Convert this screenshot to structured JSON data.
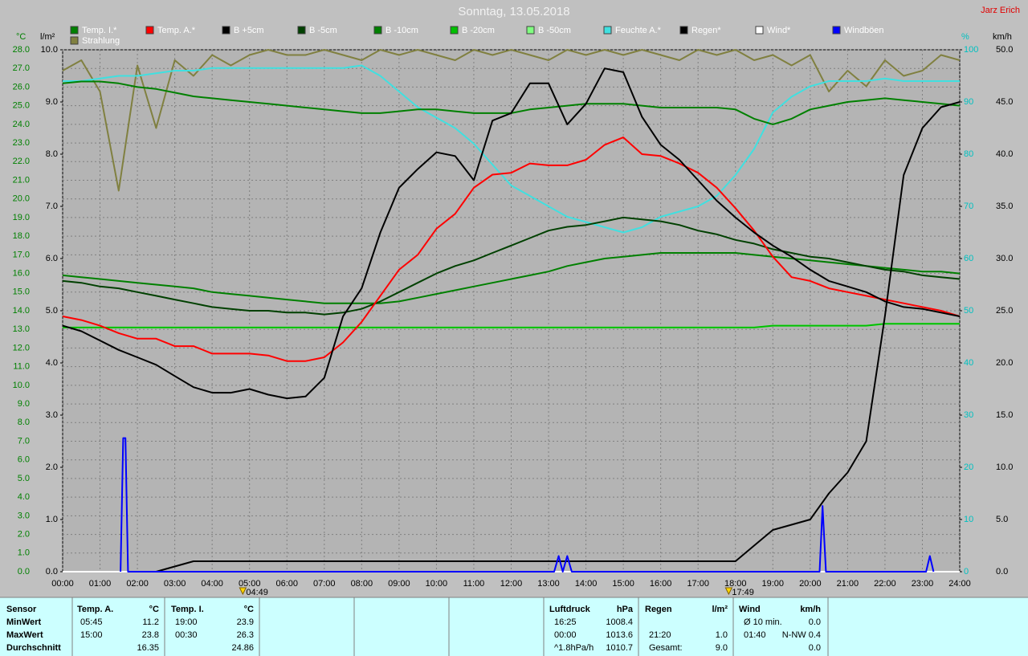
{
  "header": {
    "title": "Sonntag, 13.05.2018",
    "author": "Jarz Erich"
  },
  "chart_data": {
    "type": "line",
    "ylabel": "°C",
    "y2label": "l/m²",
    "y3label": "%",
    "y4label": "km/h",
    "x": [
      0,
      0.5,
      1,
      1.5,
      2,
      2.5,
      3,
      3.5,
      4,
      4.5,
      5,
      5.5,
      6,
      6.5,
      7,
      7.5,
      8,
      8.5,
      9,
      9.5,
      10,
      10.5,
      11,
      11.5,
      12,
      12.5,
      13,
      13.5,
      14,
      14.5,
      15,
      15.5,
      16,
      16.5,
      17,
      17.5,
      18,
      18.5,
      19,
      19.5,
      20,
      20.5,
      21,
      21.5,
      22,
      22.5,
      23,
      23.5,
      24
    ],
    "xlim": [
      0,
      24
    ],
    "xticks": [
      {
        "value": 0,
        "label": "00:00"
      },
      {
        "value": 1,
        "label": "01:00"
      },
      {
        "value": 2,
        "label": "02:00"
      },
      {
        "value": 3,
        "label": "03:00"
      },
      {
        "value": 4,
        "label": "04:00"
      },
      {
        "value": 5,
        "label": "05:00"
      },
      {
        "value": 6,
        "label": "06:00"
      },
      {
        "value": 7,
        "label": "07:00"
      },
      {
        "value": 8,
        "label": "08:00"
      },
      {
        "value": 9,
        "label": "09:00"
      },
      {
        "value": 10,
        "label": "10:00"
      },
      {
        "value": 11,
        "label": "11:00"
      },
      {
        "value": 12,
        "label": "12:00"
      },
      {
        "value": 13,
        "label": "13:00"
      },
      {
        "value": 14,
        "label": "14:00"
      },
      {
        "value": 15,
        "label": "15:00"
      },
      {
        "value": 16,
        "label": "16:00"
      },
      {
        "value": 17,
        "label": "17:00"
      },
      {
        "value": 18,
        "label": "18:00"
      },
      {
        "value": 19,
        "label": "19:00"
      },
      {
        "value": 20,
        "label": "20:00"
      },
      {
        "value": 21,
        "label": "21:00"
      },
      {
        "value": 22,
        "label": "22:00"
      },
      {
        "value": 23,
        "label": "23:00"
      },
      {
        "value": 24,
        "label": "24:00"
      }
    ],
    "ylim": [
      0,
      28
    ],
    "yticks": [
      {
        "value": 0,
        "label": "0.0"
      },
      {
        "value": 1,
        "label": "1.0"
      },
      {
        "value": 2,
        "label": "2.0"
      },
      {
        "value": 3,
        "label": "3.0"
      },
      {
        "value": 4,
        "label": "4.0"
      },
      {
        "value": 5,
        "label": "5.0"
      },
      {
        "value": 6,
        "label": "6.0"
      },
      {
        "value": 7,
        "label": "7.0"
      },
      {
        "value": 8,
        "label": "8.0"
      },
      {
        "value": 9,
        "label": "9.0"
      },
      {
        "value": 10,
        "label": "10.0"
      },
      {
        "value": 11,
        "label": "11.0"
      },
      {
        "value": 12,
        "label": "12.0"
      },
      {
        "value": 13,
        "label": "13.0"
      },
      {
        "value": 14,
        "label": "14.0"
      },
      {
        "value": 15,
        "label": "15.0"
      },
      {
        "value": 16,
        "label": "16.0"
      },
      {
        "value": 17,
        "label": "17.0"
      },
      {
        "value": 18,
        "label": "18.0"
      },
      {
        "value": 19,
        "label": "19.0"
      },
      {
        "value": 20,
        "label": "20.0"
      },
      {
        "value": 21,
        "label": "21.0"
      },
      {
        "value": 22,
        "label": "22.0"
      },
      {
        "value": 23,
        "label": "23.0"
      },
      {
        "value": 24,
        "label": "24.0"
      },
      {
        "value": 25,
        "label": "25.0"
      },
      {
        "value": 26,
        "label": "26.0"
      },
      {
        "value": 27,
        "label": "27.0"
      },
      {
        "value": 28,
        "label": "28.0"
      }
    ],
    "y2lim": [
      0,
      10
    ],
    "y2ticks": [
      {
        "value": 0,
        "label": "0.0"
      },
      {
        "value": 1,
        "label": "1.0"
      },
      {
        "value": 2,
        "label": "2.0"
      },
      {
        "value": 3,
        "label": "3.0"
      },
      {
        "value": 4,
        "label": "4.0"
      },
      {
        "value": 5,
        "label": "5.0"
      },
      {
        "value": 6,
        "label": "6.0"
      },
      {
        "value": 7,
        "label": "7.0"
      },
      {
        "value": 8,
        "label": "8.0"
      },
      {
        "value": 9,
        "label": "9.0"
      },
      {
        "value": 10,
        "label": "10.0"
      }
    ],
    "y3lim": [
      0,
      100
    ],
    "y3ticks": [
      0,
      10,
      20,
      30,
      40,
      50,
      60,
      70,
      80,
      90,
      100
    ],
    "y4lim": [
      0,
      50
    ],
    "y4ticks": [
      {
        "value": 0,
        "label": "0.0"
      },
      {
        "value": 5,
        "label": "5.0"
      },
      {
        "value": 10,
        "label": "10.0"
      },
      {
        "value": 15,
        "label": "15.0"
      },
      {
        "value": 20,
        "label": "20.0"
      },
      {
        "value": 25,
        "label": "25.0"
      },
      {
        "value": 30,
        "label": "30.0"
      },
      {
        "value": 35,
        "label": "35.0"
      },
      {
        "value": 40,
        "label": "40.0"
      },
      {
        "value": 45,
        "label": "45.0"
      },
      {
        "value": 50,
        "label": "50.0"
      }
    ],
    "grid": true,
    "series": [
      {
        "name": "Temp. I.*",
        "color": "#008000",
        "axis": "y",
        "values": [
          26.2,
          26.3,
          26.3,
          26.2,
          26.0,
          25.9,
          25.7,
          25.5,
          25.4,
          25.3,
          25.2,
          25.1,
          25.0,
          24.9,
          24.8,
          24.7,
          24.6,
          24.6,
          24.7,
          24.8,
          24.8,
          24.7,
          24.6,
          24.6,
          24.6,
          24.8,
          24.9,
          25.0,
          25.1,
          25.1,
          25.1,
          25.0,
          24.9,
          24.9,
          24.9,
          24.9,
          24.8,
          24.3,
          24.0,
          24.3,
          24.8,
          25.0,
          25.2,
          25.3,
          25.4,
          25.3,
          25.2,
          25.1,
          25.0
        ]
      },
      {
        "name": "Temp. A.*",
        "color": "#ff0000",
        "axis": "y",
        "values": [
          13.7,
          13.5,
          13.2,
          12.8,
          12.5,
          12.5,
          12.1,
          12.1,
          11.7,
          11.7,
          11.7,
          11.6,
          11.3,
          11.3,
          11.5,
          12.3,
          13.4,
          14.8,
          16.2,
          17.0,
          18.4,
          19.2,
          20.6,
          21.3,
          21.4,
          21.9,
          21.8,
          21.8,
          22.1,
          22.9,
          23.3,
          22.4,
          22.3,
          21.9,
          21.4,
          20.6,
          19.5,
          18.3,
          16.9,
          15.8,
          15.6,
          15.2,
          15.0,
          14.8,
          14.6,
          14.4,
          14.2,
          14.0,
          13.7
        ]
      },
      {
        "name": "B +5cm",
        "color": "#000000",
        "axis": "y",
        "values": [
          13.2,
          12.9,
          12.4,
          11.9,
          11.5,
          11.1,
          10.5,
          9.9,
          9.6,
          9.6,
          9.8,
          9.5,
          9.3,
          9.4,
          10.4,
          13.7,
          15.2,
          18.2,
          20.6,
          21.6,
          22.5,
          22.3,
          21.0,
          24.2,
          24.6,
          26.2,
          26.2,
          24.0,
          25.1,
          27.0,
          26.8,
          24.4,
          22.9,
          22.1,
          21.0,
          19.9,
          19.0,
          18.2,
          17.5,
          16.9,
          16.2,
          15.6,
          15.3,
          15.0,
          14.5,
          14.2,
          14.1,
          13.9,
          13.7
        ]
      },
      {
        "name": "B -5cm",
        "color": "#004000",
        "axis": "y",
        "values": [
          15.6,
          15.5,
          15.3,
          15.2,
          15.0,
          14.8,
          14.6,
          14.4,
          14.2,
          14.1,
          14.0,
          14.0,
          13.9,
          13.9,
          13.8,
          13.9,
          14.1,
          14.5,
          15.0,
          15.5,
          16.0,
          16.4,
          16.7,
          17.1,
          17.5,
          17.9,
          18.3,
          18.5,
          18.6,
          18.8,
          19.0,
          18.9,
          18.8,
          18.6,
          18.3,
          18.1,
          17.8,
          17.6,
          17.3,
          17.1,
          16.9,
          16.8,
          16.6,
          16.4,
          16.2,
          16.1,
          15.9,
          15.8,
          15.7
        ]
      },
      {
        "name": "B -10cm",
        "color": "#008000",
        "axis": "y",
        "values": [
          15.9,
          15.8,
          15.7,
          15.6,
          15.5,
          15.4,
          15.3,
          15.2,
          15.0,
          14.9,
          14.8,
          14.7,
          14.6,
          14.5,
          14.4,
          14.4,
          14.4,
          14.4,
          14.5,
          14.7,
          14.9,
          15.1,
          15.3,
          15.5,
          15.7,
          15.9,
          16.1,
          16.4,
          16.6,
          16.8,
          16.9,
          17.0,
          17.1,
          17.1,
          17.1,
          17.1,
          17.1,
          17.0,
          16.9,
          16.8,
          16.7,
          16.6,
          16.5,
          16.4,
          16.3,
          16.2,
          16.1,
          16.1,
          16.0
        ]
      },
      {
        "name": "B -20cm",
        "color": "#00c000",
        "axis": "y",
        "values": [
          13.1,
          13.1,
          13.1,
          13.1,
          13.1,
          13.1,
          13.1,
          13.1,
          13.1,
          13.1,
          13.1,
          13.1,
          13.1,
          13.1,
          13.1,
          13.1,
          13.1,
          13.1,
          13.1,
          13.1,
          13.1,
          13.1,
          13.1,
          13.1,
          13.1,
          13.1,
          13.1,
          13.1,
          13.1,
          13.1,
          13.1,
          13.1,
          13.1,
          13.1,
          13.1,
          13.1,
          13.1,
          13.1,
          13.2,
          13.2,
          13.2,
          13.2,
          13.2,
          13.2,
          13.3,
          13.3,
          13.3,
          13.3,
          13.3
        ]
      },
      {
        "name": "B -50cm",
        "color": "#80ff80",
        "axis": "y",
        "values": [
          13.1,
          13.1,
          13.1,
          13.1,
          13.1,
          13.1,
          13.1,
          13.1,
          13.1,
          13.1,
          13.1,
          13.1,
          13.1,
          13.1,
          13.1,
          13.1,
          13.1,
          13.1,
          13.1,
          13.1,
          13.1,
          13.1,
          13.1,
          13.1,
          13.1,
          13.1,
          13.1,
          13.1,
          13.1,
          13.1,
          13.1,
          13.1,
          13.1,
          13.1,
          13.1,
          13.1,
          13.1,
          13.1,
          13.2,
          13.2,
          13.2,
          13.2,
          13.2,
          13.2,
          13.3,
          13.3,
          13.3,
          13.3,
          13.3
        ]
      },
      {
        "name": "Feuchte A.*",
        "color": "#40e0e0",
        "axis": "y3",
        "values": [
          94,
          94,
          94.5,
          95,
          95,
          95.5,
          96,
          96,
          96.5,
          96.5,
          96.5,
          96.5,
          96.5,
          96.5,
          96.5,
          96.5,
          97,
          95,
          92,
          89,
          87,
          85,
          82,
          78,
          74,
          72,
          70,
          68,
          67,
          66,
          65,
          66,
          68,
          69,
          70,
          72,
          76,
          81,
          88,
          91,
          93,
          94,
          94,
          94,
          94.5,
          94,
          94,
          94,
          94
        ]
      },
      {
        "name": "Regen*",
        "color": "#000000",
        "axis": "y2",
        "values": [
          0,
          0,
          0,
          0,
          0,
          0,
          0.1,
          0.2,
          0.2,
          0.2,
          0.2,
          0.2,
          0.2,
          0.2,
          0.2,
          0.2,
          0.2,
          0.2,
          0.2,
          0.2,
          0.2,
          0.2,
          0.2,
          0.2,
          0.2,
          0.2,
          0.2,
          0.2,
          0.2,
          0.2,
          0.2,
          0.2,
          0.2,
          0.2,
          0.2,
          0.2,
          0.2,
          0.5,
          0.8,
          0.9,
          1.0,
          1.5,
          1.9,
          2.5,
          4.9,
          7.6,
          8.5,
          8.9,
          9.0
        ]
      },
      {
        "name": "Wind*",
        "color": "#ffffff",
        "axis": "y4",
        "values": [
          0,
          0,
          0,
          0,
          0,
          0,
          0,
          0,
          0,
          0,
          0,
          0,
          0,
          0,
          0,
          0,
          0,
          0,
          0,
          0,
          0,
          0,
          0,
          0,
          0,
          0,
          0,
          0,
          0,
          0,
          0,
          0,
          0,
          0,
          0,
          0,
          0,
          0,
          0,
          0,
          0,
          0,
          0,
          0,
          0,
          0,
          0,
          0,
          0
        ]
      },
      {
        "name": "Windböen",
        "color": "#0000ff",
        "axis": "y4",
        "x": [
          1.55,
          1.62,
          1.68,
          1.75,
          13.15,
          13.27,
          13.38,
          13.5,
          13.62,
          20.25,
          20.33,
          20.42,
          23.1,
          23.2,
          23.3
        ],
        "values": [
          0,
          12.8,
          12.8,
          0,
          0,
          1.5,
          0,
          1.5,
          0,
          0,
          6.3,
          0,
          0,
          1.5,
          0
        ]
      },
      {
        "name": "Strahlung",
        "color": "#808040",
        "axis": "y2",
        "values": [
          9.6,
          9.8,
          9.2,
          7.3,
          9.7,
          8.5,
          9.8,
          9.5,
          9.9,
          9.7,
          9.9,
          10,
          9.9,
          9.9,
          10,
          9.9,
          9.8,
          10,
          9.9,
          10,
          9.9,
          9.8,
          10,
          9.9,
          10,
          9.9,
          9.8,
          10,
          9.9,
          10,
          9.9,
          10,
          9.9,
          9.8,
          10,
          9.9,
          10,
          9.8,
          9.9,
          9.7,
          9.9,
          9.2,
          9.6,
          9.3,
          9.8,
          9.5,
          9.6,
          9.9,
          9.8
        ]
      }
    ],
    "sun_events": [
      {
        "value": 4.82,
        "label": "04:49"
      },
      {
        "value": 17.82,
        "label": "17:49"
      }
    ]
  },
  "table": {
    "columns": [
      {
        "header": [
          "Sensor"
        ],
        "rows": [
          [
            "MinWert"
          ],
          [
            "MaxWert"
          ],
          [
            "Durchschnitt"
          ]
        ]
      },
      {
        "header": [
          "Temp. A.",
          "°C"
        ],
        "rows": [
          [
            "05:45",
            "11.2"
          ],
          [
            "15:00",
            "23.8"
          ],
          [
            null,
            "16.35"
          ]
        ]
      },
      {
        "header": [
          "Temp. I.",
          "°C"
        ],
        "rows": [
          [
            "19:00",
            "23.9"
          ],
          [
            "00:30",
            "26.3"
          ],
          [
            null,
            "24.86"
          ]
        ]
      },
      {
        "header": [
          "Luftdruck",
          "hPa"
        ],
        "rows": [
          [
            "16:25",
            "1008.4"
          ],
          [
            "00:00",
            "1013.6"
          ],
          [
            "^1.8hPa/h",
            "1010.7"
          ]
        ]
      },
      {
        "header": [
          "Regen",
          "l/m²"
        ],
        "rows": [
          [
            null,
            null
          ],
          [
            "21:20",
            "1.0"
          ],
          [
            "Gesamt:",
            "9.0"
          ]
        ]
      },
      {
        "header": [
          "Wind",
          "km/h"
        ],
        "rows": [
          [
            "Ø 10 min.",
            "0.0"
          ],
          [
            "01:40",
            "N-NW 0.4"
          ],
          [
            null,
            "0.0"
          ]
        ]
      }
    ]
  }
}
